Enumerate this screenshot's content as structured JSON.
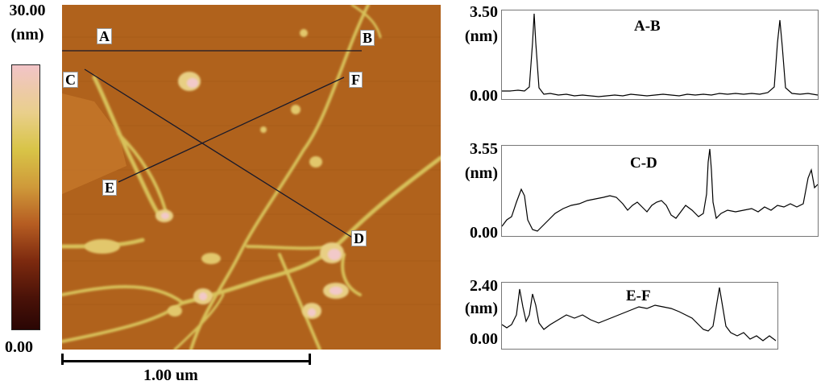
{
  "colorbar": {
    "max_label": "30.00",
    "unit_label": "(nm)",
    "min_label": "0.00"
  },
  "scan": {
    "scale_label": "1.00 um",
    "points": {
      "A": "A",
      "B": "B",
      "C": "C",
      "D": "D",
      "E": "E",
      "F": "F"
    }
  },
  "profiles": [
    {
      "title": "A-B",
      "max_label": "3.50",
      "unit_label": "(nm)",
      "min_label": "0.00"
    },
    {
      "title": "C-D",
      "max_label": "3.55",
      "unit_label": "(nm)",
      "min_label": "0.00"
    },
    {
      "title": "E-F",
      "max_label": "2.40",
      "unit_label": "(nm)",
      "min_label": "0.00"
    }
  ]
}
